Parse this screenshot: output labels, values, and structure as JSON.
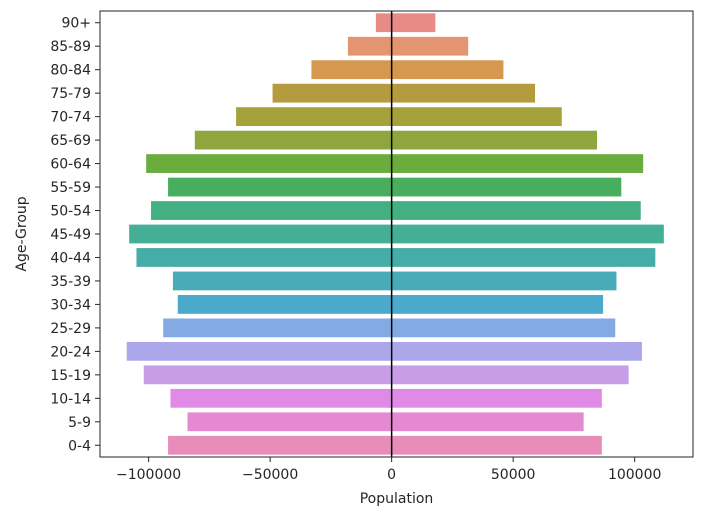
{
  "chart_data": {
    "type": "bar",
    "orientation": "horizontal",
    "xlabel": "Population",
    "ylabel": "Age-Group",
    "xlim": [
      -120000,
      124000
    ],
    "xticks": [
      -100000,
      -50000,
      0,
      50000,
      100000
    ],
    "xtick_labels": [
      "−100000",
      "−50000",
      "0",
      "50000",
      "100000"
    ],
    "zero_line": true,
    "grid": false,
    "categories": [
      "90+",
      "85-89",
      "80-84",
      "75-79",
      "70-74",
      "65-69",
      "60-64",
      "55-59",
      "50-54",
      "45-49",
      "40-44",
      "35-39",
      "30-34",
      "25-29",
      "20-24",
      "15-19",
      "10-14",
      "5-9",
      "0-4"
    ],
    "colors": [
      "#e88a86",
      "#e39471",
      "#d6974e",
      "#b49b3f",
      "#a5a23c",
      "#8fa63e",
      "#6aac3e",
      "#48ae5d",
      "#44af80",
      "#44ae97",
      "#46aca7",
      "#48abb6",
      "#4ba9cc",
      "#84aae4",
      "#aca6ea",
      "#c89ce6",
      "#df8ae6",
      "#e58ad2",
      "#e88db9"
    ],
    "series": [
      {
        "values": [
          -6500,
          -18000,
          -33000,
          -49000,
          -64000,
          -81000,
          -101000,
          -92000,
          -99000,
          -108000,
          -105000,
          -90000,
          -88000,
          -94000,
          -109000,
          -102000,
          -91000,
          -84000,
          -92000
        ]
      },
      {
        "values": [
          18000,
          31500,
          46000,
          59000,
          70000,
          84500,
          103500,
          94500,
          102500,
          112000,
          108500,
          92500,
          87000,
          92000,
          103000,
          97500,
          86500,
          79000,
          86500
        ]
      }
    ]
  }
}
